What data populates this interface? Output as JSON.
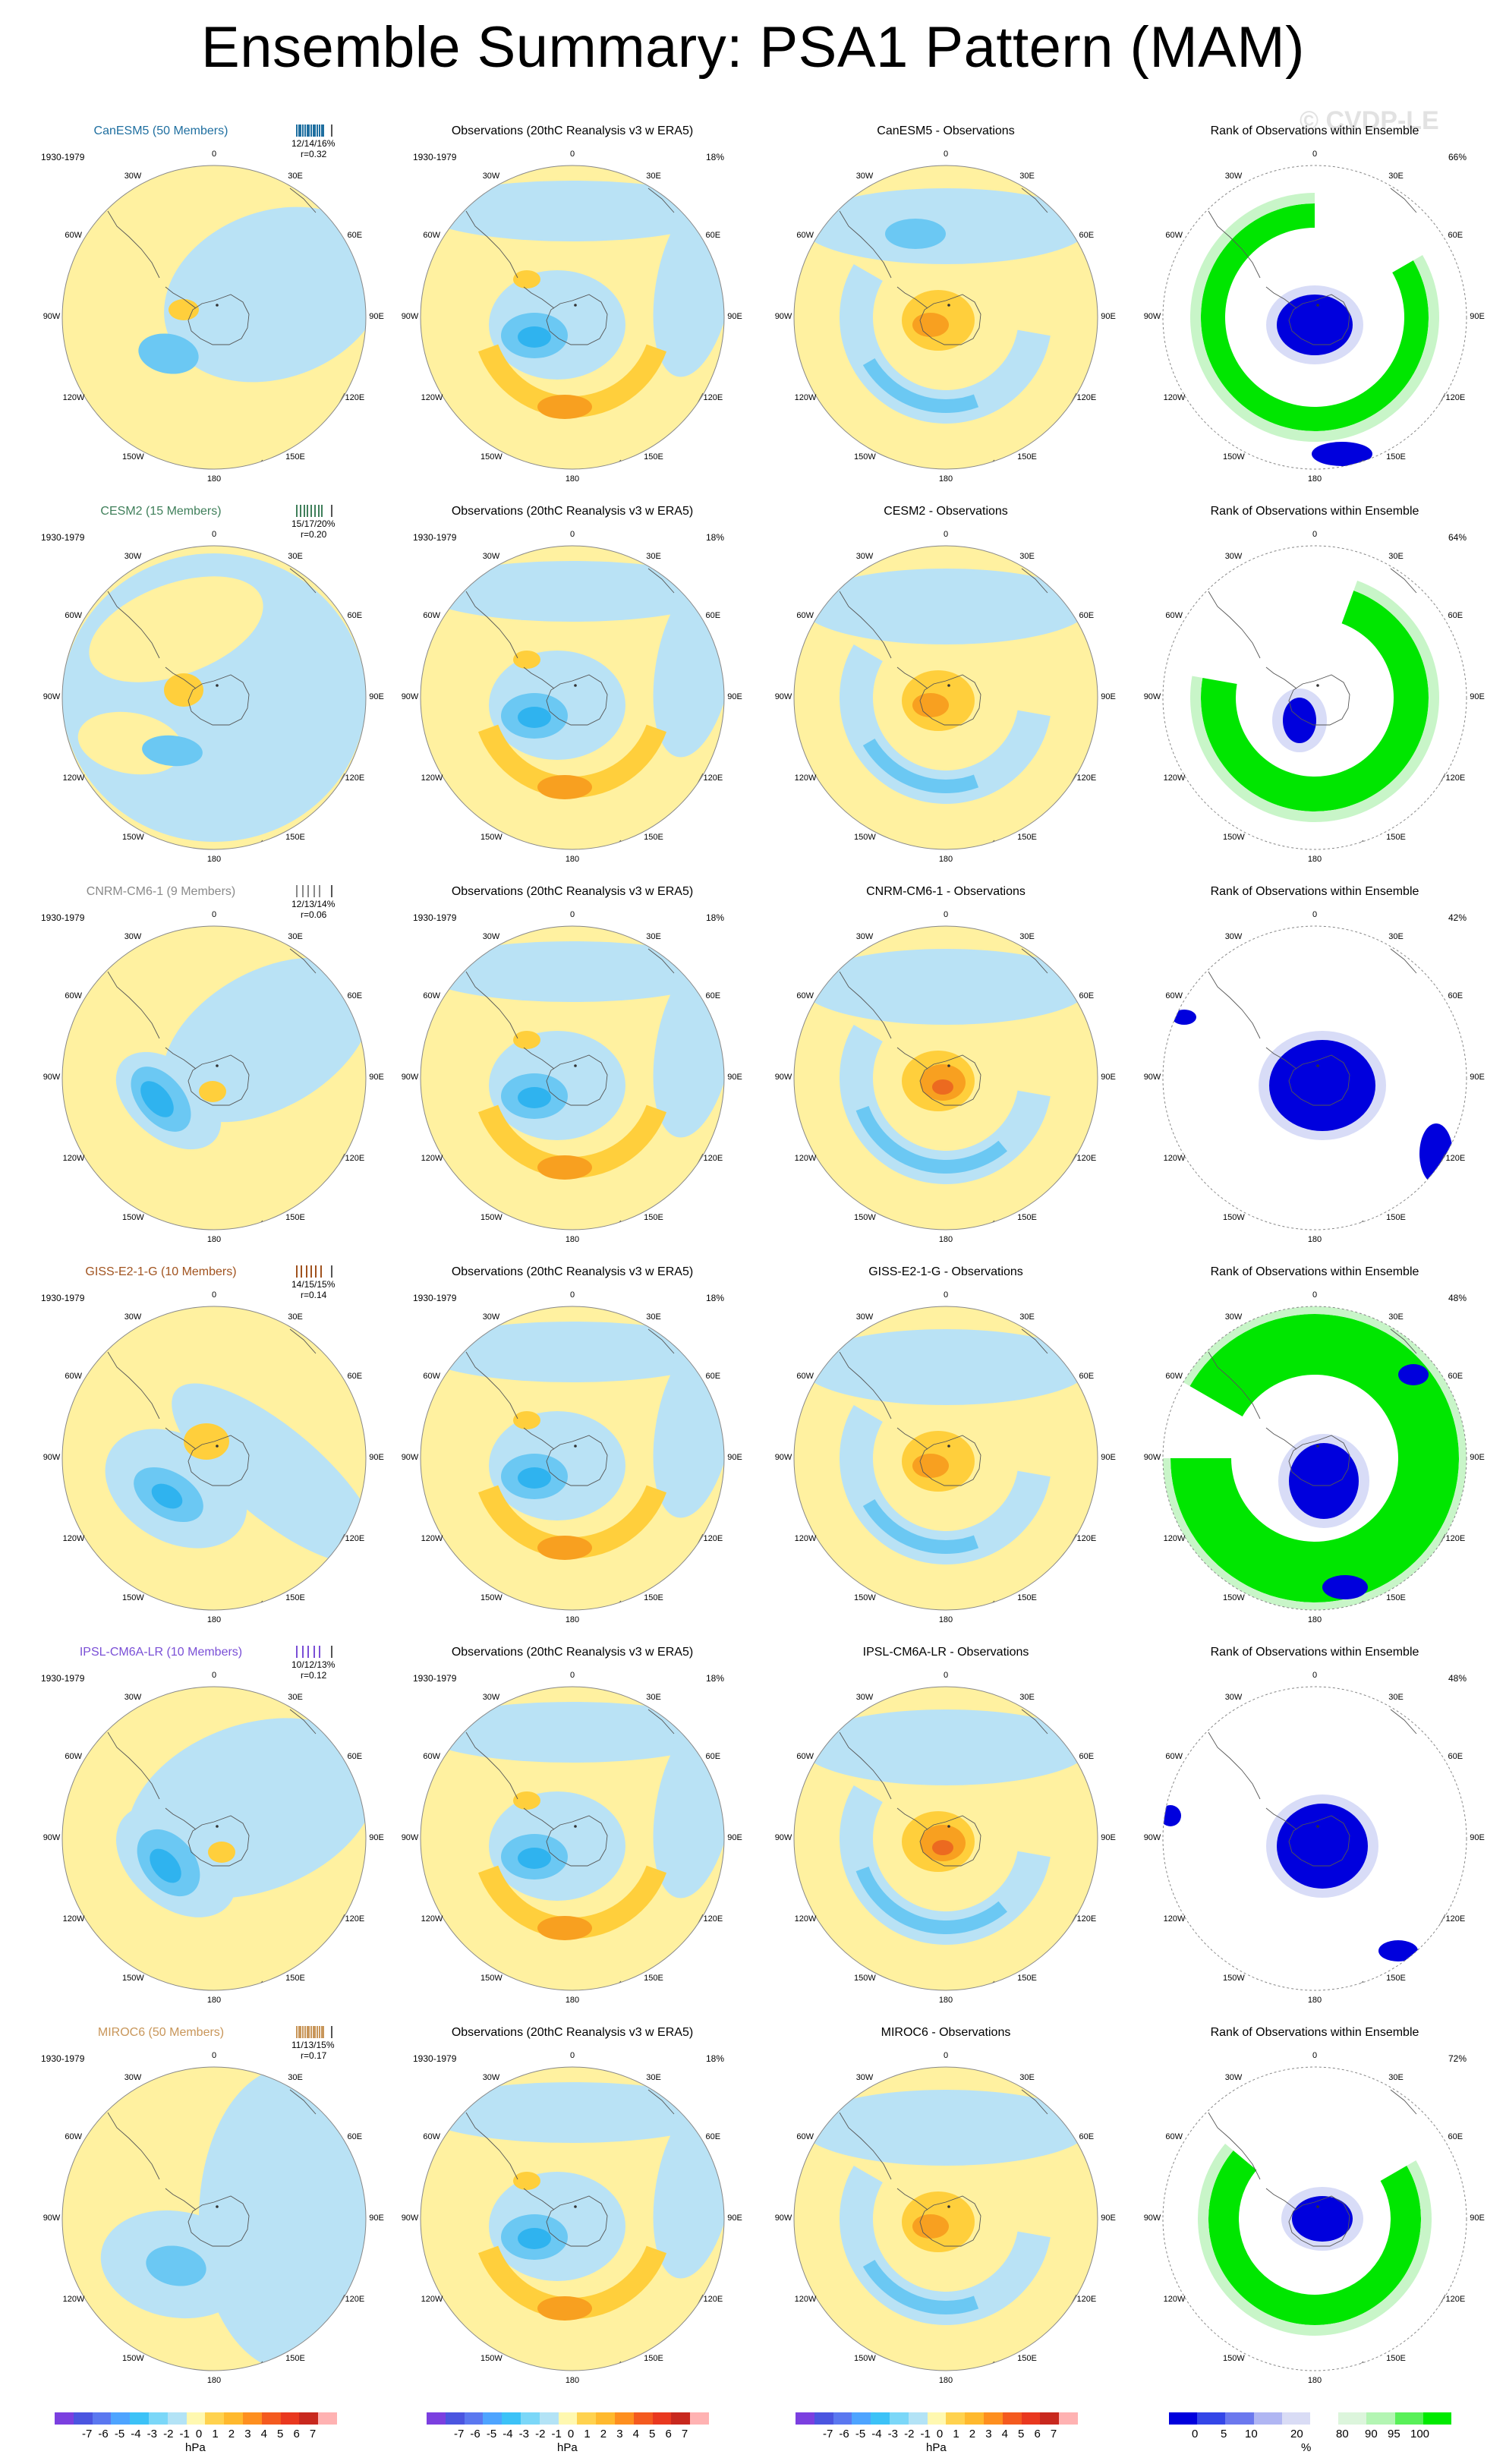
{
  "title": "Ensemble Summary: PSA1 Pattern (MAM)",
  "watermark": "© CVDP-LE",
  "period": "1930-1979",
  "obs_pct": "18%",
  "longitude_labels": [
    "0",
    "30E",
    "60E",
    "90E",
    "120E",
    "150E",
    "180",
    "150W",
    "120W",
    "90W",
    "60W",
    "30W"
  ],
  "colors": {
    "pressure_levels": [
      "#7b3fe0",
      "#4b55e0",
      "#5b78f0",
      "#4ea4ff",
      "#3cc2f7",
      "#7bd7f8",
      "#b3e3f6",
      "#fff8b0",
      "#ffd24f",
      "#ffb92e",
      "#fe8f1f",
      "#f45a1f",
      "#e9381f",
      "#c8281e",
      "#ffb2b2"
    ],
    "rank_levels": [
      "#0000dd",
      "#3446e8",
      "#6b78ee",
      "#b0b6f3",
      "#d9dcf5",
      "#ffffff",
      "#dcf5dc",
      "#b3f5b3",
      "#58f058",
      "#00ea00"
    ],
    "pos1": "#fff1a0",
    "pos2": "#ffcf3c",
    "pos3": "#f8a020",
    "pos4": "#ec6a20",
    "neg1": "#b9e2f5",
    "neg2": "#6bc8f3",
    "neg3": "#2fb3ef",
    "neg4": "#3b82ea",
    "rank_low": "#0000dd",
    "rank_mid": "#d8dcf7",
    "rank_high": "#00e600",
    "rank_mid_green": "#c8f5c8"
  },
  "colorbar_pressure": {
    "labels": [
      "-7",
      "-6",
      "-5",
      "-4",
      "-3",
      "-2",
      "-1",
      "0",
      "1",
      "2",
      "3",
      "4",
      "5",
      "6",
      "7"
    ],
    "units": "hPa"
  },
  "colorbar_rank": {
    "labels": [
      "0",
      "5",
      "10",
      "20",
      "80",
      "90",
      "95",
      "100"
    ],
    "units": "%"
  },
  "rows": [
    {
      "model": "CanESM5 (50 Members)",
      "model_color": "#1f6fa0",
      "stats": "12/14/16%",
      "r": "r=0.32",
      "bar_color": "#1f6fa0",
      "obs_title": "Observations (20thC Reanalysis v3 w ERA5)",
      "diff_title": "CanESM5 - Observations",
      "rank_title": "Rank of Observations within Ensemble",
      "rank_pct": "66%"
    },
    {
      "model": "CESM2 (15 Members)",
      "model_color": "#3f7f5a",
      "stats": "15/17/20%",
      "r": "r=0.20",
      "bar_color": "#3f7f5a",
      "obs_title": "Observations (20thC Reanalysis v3 w ERA5)",
      "diff_title": "CESM2 - Observations",
      "rank_title": "Rank of Observations within Ensemble",
      "rank_pct": "64%"
    },
    {
      "model": "CNRM-CM6-1 (9 Members)",
      "model_color": "#8a8a8a",
      "stats": "12/13/14%",
      "r": "r=0.06",
      "bar_color": "#8a8a8a",
      "obs_title": "Observations (20thC Reanalysis v3 w ERA5)",
      "diff_title": "CNRM-CM6-1 - Observations",
      "rank_title": "Rank of Observations within Ensemble",
      "rank_pct": "42%"
    },
    {
      "model": "GISS-E2-1-G (10 Members)",
      "model_color": "#a0521e",
      "stats": "14/15/15%",
      "r": "r=0.14",
      "bar_color": "#a0521e",
      "obs_title": "Observations (20thC Reanalysis v3 w ERA5)",
      "diff_title": "GISS-E2-1-G - Observations",
      "rank_title": "Rank of Observations within Ensemble",
      "rank_pct": "48%"
    },
    {
      "model": "IPSL-CM6A-LR (10 Members)",
      "model_color": "#7a4fd6",
      "stats": "10/12/13%",
      "r": "r=0.12",
      "bar_color": "#7a4fd6",
      "obs_title": "Observations (20thC Reanalysis v3 w ERA5)",
      "diff_title": "IPSL-CM6A-LR - Observations",
      "rank_title": "Rank of Observations within Ensemble",
      "rank_pct": "48%"
    },
    {
      "model": "MIROC6 (50 Members)",
      "model_color": "#c8965a",
      "stats": "11/13/15%",
      "r": "r=0.17",
      "bar_color": "#c8965a",
      "obs_title": "Observations (20thC Reanalysis v3 w ERA5)",
      "diff_title": "MIROC6 - Observations",
      "rank_title": "Rank of Observations within Ensemble",
      "rank_pct": "72%"
    }
  ],
  "chart_data": {
    "type": "heatmap",
    "title": "Ensemble Summary: PSA1 Pattern (MAM)",
    "projection": "south polar stereographic",
    "period": "1930-1979",
    "observations": "Observations (20thC Reanalysis v3 w ERA5)",
    "observations_pct_variance": 18,
    "pressure_units": "hPa",
    "pressure_scale": [
      -7,
      -6,
      -5,
      -4,
      -3,
      -2,
      -1,
      0,
      1,
      2,
      3,
      4,
      5,
      6,
      7
    ],
    "rank_units": "%",
    "rank_scale": [
      0,
      5,
      10,
      20,
      80,
      90,
      95,
      100
    ],
    "models": [
      {
        "name": "CanESM5",
        "members": 50,
        "pct_variance_min_mean_max": [
          12,
          14,
          16
        ],
        "pattern_correlation": 0.32,
        "obs_rank_pct_area": 66
      },
      {
        "name": "CESM2",
        "members": 15,
        "pct_variance_min_mean_max": [
          15,
          17,
          20
        ],
        "pattern_correlation": 0.2,
        "obs_rank_pct_area": 64
      },
      {
        "name": "CNRM-CM6-1",
        "members": 9,
        "pct_variance_min_mean_max": [
          12,
          13,
          14
        ],
        "pattern_correlation": 0.06,
        "obs_rank_pct_area": 42
      },
      {
        "name": "GISS-E2-1-G",
        "members": 10,
        "pct_variance_min_mean_max": [
          14,
          15,
          15
        ],
        "pattern_correlation": 0.14,
        "obs_rank_pct_area": 48
      },
      {
        "name": "IPSL-CM6A-LR",
        "members": 10,
        "pct_variance_min_mean_max": [
          10,
          12,
          13
        ],
        "pattern_correlation": 0.12,
        "obs_rank_pct_area": 48
      },
      {
        "name": "MIROC6",
        "members": 50,
        "pct_variance_min_mean_max": [
          11,
          13,
          15
        ],
        "pattern_correlation": 0.17,
        "obs_rank_pct_area": 72
      }
    ]
  }
}
